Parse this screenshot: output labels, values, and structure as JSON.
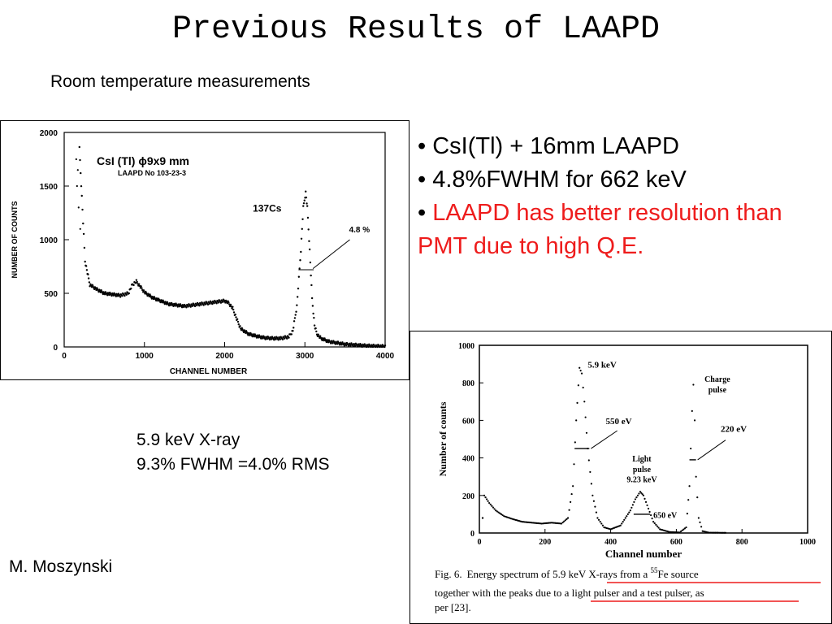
{
  "slide": {
    "title": "Previous Results of LAAPD",
    "subtitle": "Room temperature measurements",
    "bullets": [
      {
        "prefix": "• ",
        "text": "CsI(Tl) + 16mm LAAPD"
      },
      {
        "prefix": "• ",
        "text": "4.8%FWHM for 662 keV"
      },
      {
        "prefix": "• ",
        "text": "LAAPD has better resolution than PMT due to high Q.E."
      }
    ],
    "note": {
      "line1": "5.9 keV X-ray",
      "line2": "9.3% FWHM =4.0% RMS"
    },
    "author": "M. Moszynski",
    "accent_red": "#ee1c1c"
  },
  "chart_data": [
    {
      "type": "scatter",
      "title": "CsI (Tl) ϕ9x9 mm",
      "subtitle": "LAAPD No 103-23-3",
      "xlabel": "CHANNEL NUMBER",
      "ylabel": "NUMBER OF COUNTS",
      "xlim": [
        0,
        4000
      ],
      "ylim": [
        0,
        2000
      ],
      "xticks": [
        "0",
        "1000",
        "2000",
        "3000",
        "4000"
      ],
      "yticks": [
        "0",
        "500",
        "1000",
        "1500",
        "2000"
      ],
      "series": [
        {
          "x": [
            190,
            220,
            260,
            320,
            400,
            500,
            600,
            700,
            800,
            850,
            900,
            950,
            1000,
            1100,
            1200,
            1300,
            1400,
            1500,
            1600,
            1700,
            1800,
            1900,
            2000,
            2050,
            2100,
            2150,
            2200,
            2300,
            2400,
            2500,
            2600,
            2700,
            2800,
            2850,
            2900,
            2950,
            2980,
            3010,
            3030,
            3060,
            3090,
            3120,
            3150,
            3200,
            3300,
            3500,
            3800,
            4000
          ],
          "y": [
            1850,
            1400,
            800,
            580,
            540,
            500,
            490,
            480,
            500,
            580,
            610,
            560,
            510,
            460,
            430,
            400,
            390,
            380,
            390,
            400,
            410,
            420,
            430,
            410,
            360,
            260,
            170,
            120,
            100,
            85,
            80,
            80,
            95,
            150,
            380,
            900,
            1300,
            1440,
            1300,
            900,
            450,
            200,
            120,
            80,
            50,
            25,
            10,
            5
          ]
        }
      ],
      "annotations": {
        "peak": "137Cs",
        "resolution": "4.8 %"
      }
    },
    {
      "type": "scatter",
      "xlabel": "Channel number",
      "ylabel": "Number of counts",
      "xlim": [
        0,
        1000
      ],
      "ylim": [
        0,
        1000
      ],
      "xticks": [
        "0",
        "200",
        "400",
        "600",
        "800",
        "1000"
      ],
      "yticks": [
        "0",
        "200",
        "400",
        "600",
        "800",
        "1000"
      ],
      "series": [
        {
          "x": [
            15,
            30,
            50,
            75,
            100,
            130,
            160,
            190,
            220,
            250,
            270,
            285,
            295,
            305,
            312,
            320,
            330,
            345,
            360,
            380,
            400,
            430,
            460,
            475,
            490,
            500,
            515,
            530,
            550,
            580,
            610,
            630,
            640,
            648,
            652,
            656,
            660,
            668,
            680,
            700,
            750,
            800,
            850,
            900,
            950,
            1000
          ],
          "y": [
            200,
            160,
            120,
            90,
            75,
            60,
            55,
            50,
            55,
            50,
            80,
            250,
            600,
            880,
            850,
            700,
            450,
            200,
            80,
            30,
            20,
            40,
            120,
            180,
            220,
            200,
            130,
            60,
            20,
            5,
            3,
            30,
            250,
            650,
            790,
            600,
            300,
            80,
            10,
            2,
            1,
            0,
            0,
            0,
            0,
            0
          ]
        }
      ],
      "annotations": {
        "peak1": "5.9 keV",
        "width1": "550 eV",
        "peak2_line1": "Light",
        "peak2_line2": "pulse",
        "peak2_line3": "9.23 keV",
        "width2": "650 eV",
        "peak3_line1": "Charge",
        "peak3_line2": "pulse",
        "width3": "220 eV"
      },
      "caption": {
        "prefix": "Fig. 6.",
        "line1a": "Energy spectrum of ",
        "line1b": "5.9 keV X-rays from a ",
        "sup": "55",
        "line1c": "Fe source",
        "line2a": "together with the peaks du",
        "line2b": "e to a light pulser and a test pulser",
        "line2c": ", as",
        "line3": "per [23]."
      }
    }
  ]
}
